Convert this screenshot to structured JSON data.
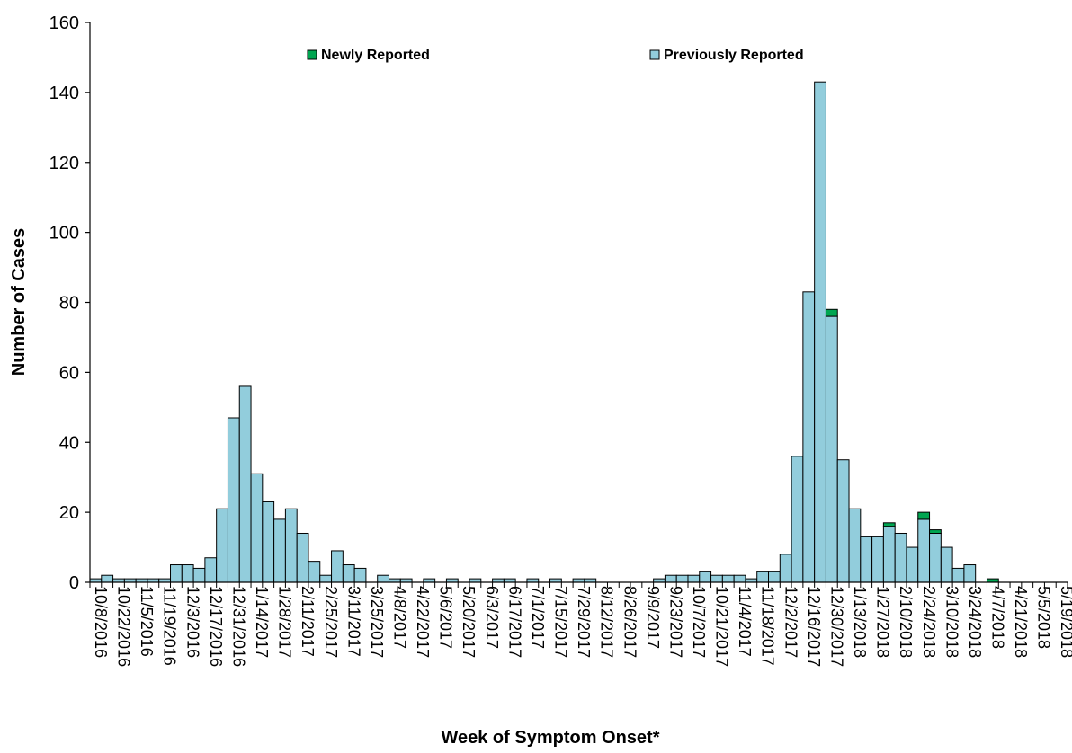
{
  "chart_data": {
    "type": "bar",
    "stacked": true,
    "xlabel": "Week of Symptom Onset*",
    "ylabel": "Number of Cases",
    "ylim": [
      0,
      160
    ],
    "yticks": [
      0,
      20,
      40,
      60,
      80,
      100,
      120,
      140,
      160
    ],
    "grid": false,
    "legend_position": "top",
    "tick_labels": [
      "10/8/2016",
      "10/22/2016",
      "11/5/2016",
      "11/19/2016",
      "12/3/2016",
      "12/17/2016",
      "12/31/2016",
      "1/14/2017",
      "1/28/2017",
      "2/11/2017",
      "2/25/2017",
      "3/11/2017",
      "3/25/2017",
      "4/8/2017",
      "4/22/2017",
      "5/6/2017",
      "5/20/2017",
      "6/3/2017",
      "6/17/2017",
      "7/1/2017",
      "7/15/2017",
      "7/29/2017",
      "8/12/2017",
      "8/26/2017",
      "9/9/2017",
      "9/23/2017",
      "10/7/2017",
      "10/21/2017",
      "11/4/2017",
      "11/18/2017",
      "12/2/2017",
      "12/16/2017",
      "12/30/2017",
      "1/13/2018",
      "1/27/2018",
      "2/10/2018",
      "2/24/2018",
      "3/10/2018",
      "3/24/2018",
      "4/7/2018",
      "4/21/2018",
      "5/5/2018",
      "5/19/2018"
    ],
    "categories": [
      "10/8/2016",
      "10/15/2016",
      "10/22/2016",
      "10/29/2016",
      "11/5/2016",
      "11/12/2016",
      "11/19/2016",
      "11/26/2016",
      "12/3/2016",
      "12/10/2016",
      "12/17/2016",
      "12/24/2016",
      "12/31/2016",
      "1/7/2017",
      "1/14/2017",
      "1/21/2017",
      "1/28/2017",
      "2/4/2017",
      "2/11/2017",
      "2/18/2017",
      "2/25/2017",
      "3/4/2017",
      "3/11/2017",
      "3/18/2017",
      "3/25/2017",
      "4/1/2017",
      "4/8/2017",
      "4/15/2017",
      "4/22/2017",
      "4/29/2017",
      "5/6/2017",
      "5/13/2017",
      "5/20/2017",
      "5/27/2017",
      "6/3/2017",
      "6/10/2017",
      "6/17/2017",
      "6/24/2017",
      "7/1/2017",
      "7/8/2017",
      "7/15/2017",
      "7/22/2017",
      "7/29/2017",
      "8/5/2017",
      "8/12/2017",
      "8/19/2017",
      "8/26/2017",
      "9/2/2017",
      "9/9/2017",
      "9/16/2017",
      "9/23/2017",
      "9/30/2017",
      "10/7/2017",
      "10/14/2017",
      "10/21/2017",
      "10/28/2017",
      "11/4/2017",
      "11/11/2017",
      "11/18/2017",
      "11/25/2017",
      "12/2/2017",
      "12/9/2017",
      "12/16/2017",
      "12/23/2017",
      "12/30/2017",
      "1/6/2018",
      "1/13/2018",
      "1/20/2018",
      "1/27/2018",
      "2/3/2018",
      "2/10/2018",
      "2/17/2018",
      "2/24/2018",
      "3/3/2018",
      "3/10/2018",
      "3/17/2018",
      "3/24/2018",
      "3/31/2018",
      "4/7/2018",
      "4/14/2018",
      "4/21/2018",
      "4/28/2018",
      "5/5/2018",
      "5/12/2018",
      "5/19/2018"
    ],
    "series": [
      {
        "name": "Previously Reported",
        "color": "#92cddc",
        "values": [
          1,
          2,
          1,
          1,
          1,
          1,
          1,
          5,
          5,
          4,
          7,
          21,
          47,
          56,
          31,
          23,
          18,
          21,
          14,
          6,
          2,
          9,
          5,
          4,
          0,
          2,
          1,
          1,
          0,
          1,
          0,
          1,
          0,
          1,
          0,
          1,
          1,
          0,
          1,
          0,
          1,
          0,
          1,
          1,
          0,
          0,
          0,
          0,
          0,
          1,
          2,
          2,
          2,
          3,
          2,
          2,
          2,
          1,
          3,
          3,
          8,
          36,
          83,
          143,
          76,
          35,
          21,
          13,
          13,
          16,
          14,
          10,
          18,
          14,
          10,
          4,
          5,
          0,
          0,
          0,
          0,
          0,
          0,
          0,
          0
        ]
      },
      {
        "name": "Newly Reported",
        "color": "#00a651",
        "values": [
          0,
          0,
          0,
          0,
          0,
          0,
          0,
          0,
          0,
          0,
          0,
          0,
          0,
          0,
          0,
          0,
          0,
          0,
          0,
          0,
          0,
          0,
          0,
          0,
          0,
          0,
          0,
          0,
          0,
          0,
          0,
          0,
          0,
          0,
          0,
          0,
          0,
          0,
          0,
          0,
          0,
          0,
          0,
          0,
          0,
          0,
          0,
          0,
          0,
          0,
          0,
          0,
          0,
          0,
          0,
          0,
          0,
          0,
          0,
          0,
          0,
          0,
          0,
          0,
          2,
          0,
          0,
          0,
          0,
          1,
          0,
          0,
          2,
          1,
          0,
          0,
          0,
          0,
          1,
          0,
          0,
          0,
          0,
          0,
          0
        ]
      }
    ]
  }
}
